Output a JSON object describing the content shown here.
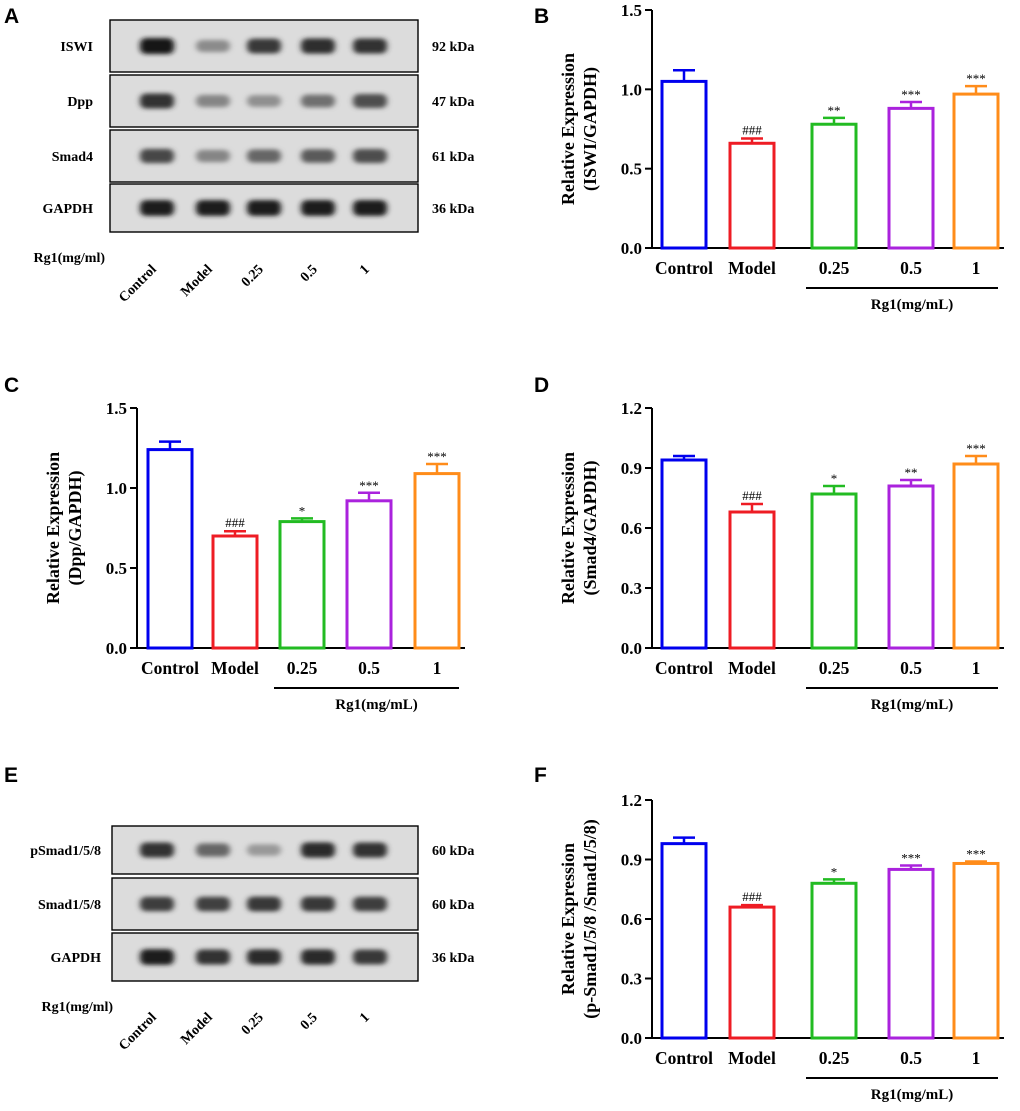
{
  "blots": [
    {
      "panel": "A",
      "rows": [
        {
          "name": "ISWI",
          "kda": "92 kDa",
          "intensity": [
            1.0,
            0.42,
            0.82,
            0.88,
            0.86
          ]
        },
        {
          "name": "Dpp",
          "kda": "47 kDa",
          "intensity": [
            0.85,
            0.45,
            0.4,
            0.55,
            0.72
          ]
        },
        {
          "name": "Smad4",
          "kda": "61 kDa",
          "intensity": [
            0.75,
            0.45,
            0.6,
            0.66,
            0.72
          ]
        },
        {
          "name": "GAPDH",
          "kda": "36 kDa",
          "intensity": [
            0.95,
            0.95,
            0.95,
            0.95,
            0.95
          ]
        }
      ],
      "treatment_label": "Rg1(mg/ml)",
      "lanes": [
        "Control",
        "Model",
        "0.25",
        "0.5",
        "1"
      ]
    },
    {
      "panel": "E",
      "rows": [
        {
          "name": "pSmad1/5/8",
          "kda": "60 kDa",
          "intensity": [
            0.85,
            0.6,
            0.35,
            0.9,
            0.85
          ]
        },
        {
          "name": "Smad1/5/8",
          "kda": "60 kDa",
          "intensity": [
            0.8,
            0.78,
            0.82,
            0.82,
            0.8
          ]
        },
        {
          "name": "GAPDH",
          "kda": "36 kDa",
          "intensity": [
            0.97,
            0.85,
            0.9,
            0.9,
            0.82
          ]
        }
      ],
      "treatment_label": "Rg1(mg/ml)",
      "lanes": [
        "Control",
        "Model",
        "0.25",
        "0.5",
        "1"
      ]
    }
  ],
  "chart_data": [
    {
      "panel": "B",
      "type": "bar",
      "ylabel_line1": "Relative Expression",
      "ylabel_line2": "(ISWI/GAPDH)",
      "ylim": [
        0,
        1.5
      ],
      "yticks": [
        "0.0",
        "0.5",
        "1.0",
        "1.5"
      ],
      "categories": [
        "Control",
        "Model",
        "0.25",
        "0.5",
        "1"
      ],
      "values": [
        1.05,
        0.66,
        0.78,
        0.88,
        0.97
      ],
      "errors": [
        0.07,
        0.03,
        0.04,
        0.04,
        0.05
      ],
      "significance": [
        "",
        "###",
        "**",
        "***",
        "***"
      ],
      "colors": [
        "#0000ee",
        "#ee1c24",
        "#22bb22",
        "#aa22dd",
        "#ff8c1a"
      ],
      "group_label": "Rg1(mg/mL)"
    },
    {
      "panel": "C",
      "type": "bar",
      "ylabel_line1": "Relative Expression",
      "ylabel_line2": "(Dpp/GAPDH)",
      "ylim": [
        0,
        1.5
      ],
      "yticks": [
        "0.0",
        "0.5",
        "1.0",
        "1.5"
      ],
      "categories": [
        "Control",
        "Model",
        "0.25",
        "0.5",
        "1"
      ],
      "values": [
        1.24,
        0.7,
        0.79,
        0.92,
        1.09
      ],
      "errors": [
        0.05,
        0.03,
        0.02,
        0.05,
        0.06
      ],
      "significance": [
        "",
        "###",
        "*",
        "***",
        "***"
      ],
      "colors": [
        "#0000ee",
        "#ee1c24",
        "#22bb22",
        "#aa22dd",
        "#ff8c1a"
      ],
      "group_label": "Rg1(mg/mL)"
    },
    {
      "panel": "D",
      "type": "bar",
      "ylabel_line1": "Relative Expression",
      "ylabel_line2": "(Smad4/GAPDH)",
      "ylim": [
        0,
        1.2
      ],
      "yticks": [
        "0.0",
        "0.3",
        "0.6",
        "0.9",
        "1.2"
      ],
      "categories": [
        "Control",
        "Model",
        "0.25",
        "0.5",
        "1"
      ],
      "values": [
        0.94,
        0.68,
        0.77,
        0.81,
        0.92
      ],
      "errors": [
        0.02,
        0.04,
        0.04,
        0.03,
        0.04
      ],
      "significance": [
        "",
        "###",
        "*",
        "**",
        "***"
      ],
      "colors": [
        "#0000ee",
        "#ee1c24",
        "#22bb22",
        "#aa22dd",
        "#ff8c1a"
      ],
      "group_label": "Rg1(mg/mL)"
    },
    {
      "panel": "F",
      "type": "bar",
      "ylabel_line1": "Relative Expression",
      "ylabel_line2": "(p-Smad1/5/8 /Smad1/5/8)",
      "ylim": [
        0,
        1.2
      ],
      "yticks": [
        "0.0",
        "0.3",
        "0.6",
        "0.9",
        "1.2"
      ],
      "categories": [
        "Control",
        "Model",
        "0.25",
        "0.5",
        "1"
      ],
      "values": [
        0.98,
        0.66,
        0.78,
        0.85,
        0.88
      ],
      "errors": [
        0.03,
        0.01,
        0.02,
        0.02,
        0.01
      ],
      "significance": [
        "",
        "###",
        "*",
        "***",
        "***"
      ],
      "colors": [
        "#0000ee",
        "#ee1c24",
        "#22bb22",
        "#aa22dd",
        "#ff8c1a"
      ],
      "group_label": "Rg1(mg/mL)"
    }
  ]
}
